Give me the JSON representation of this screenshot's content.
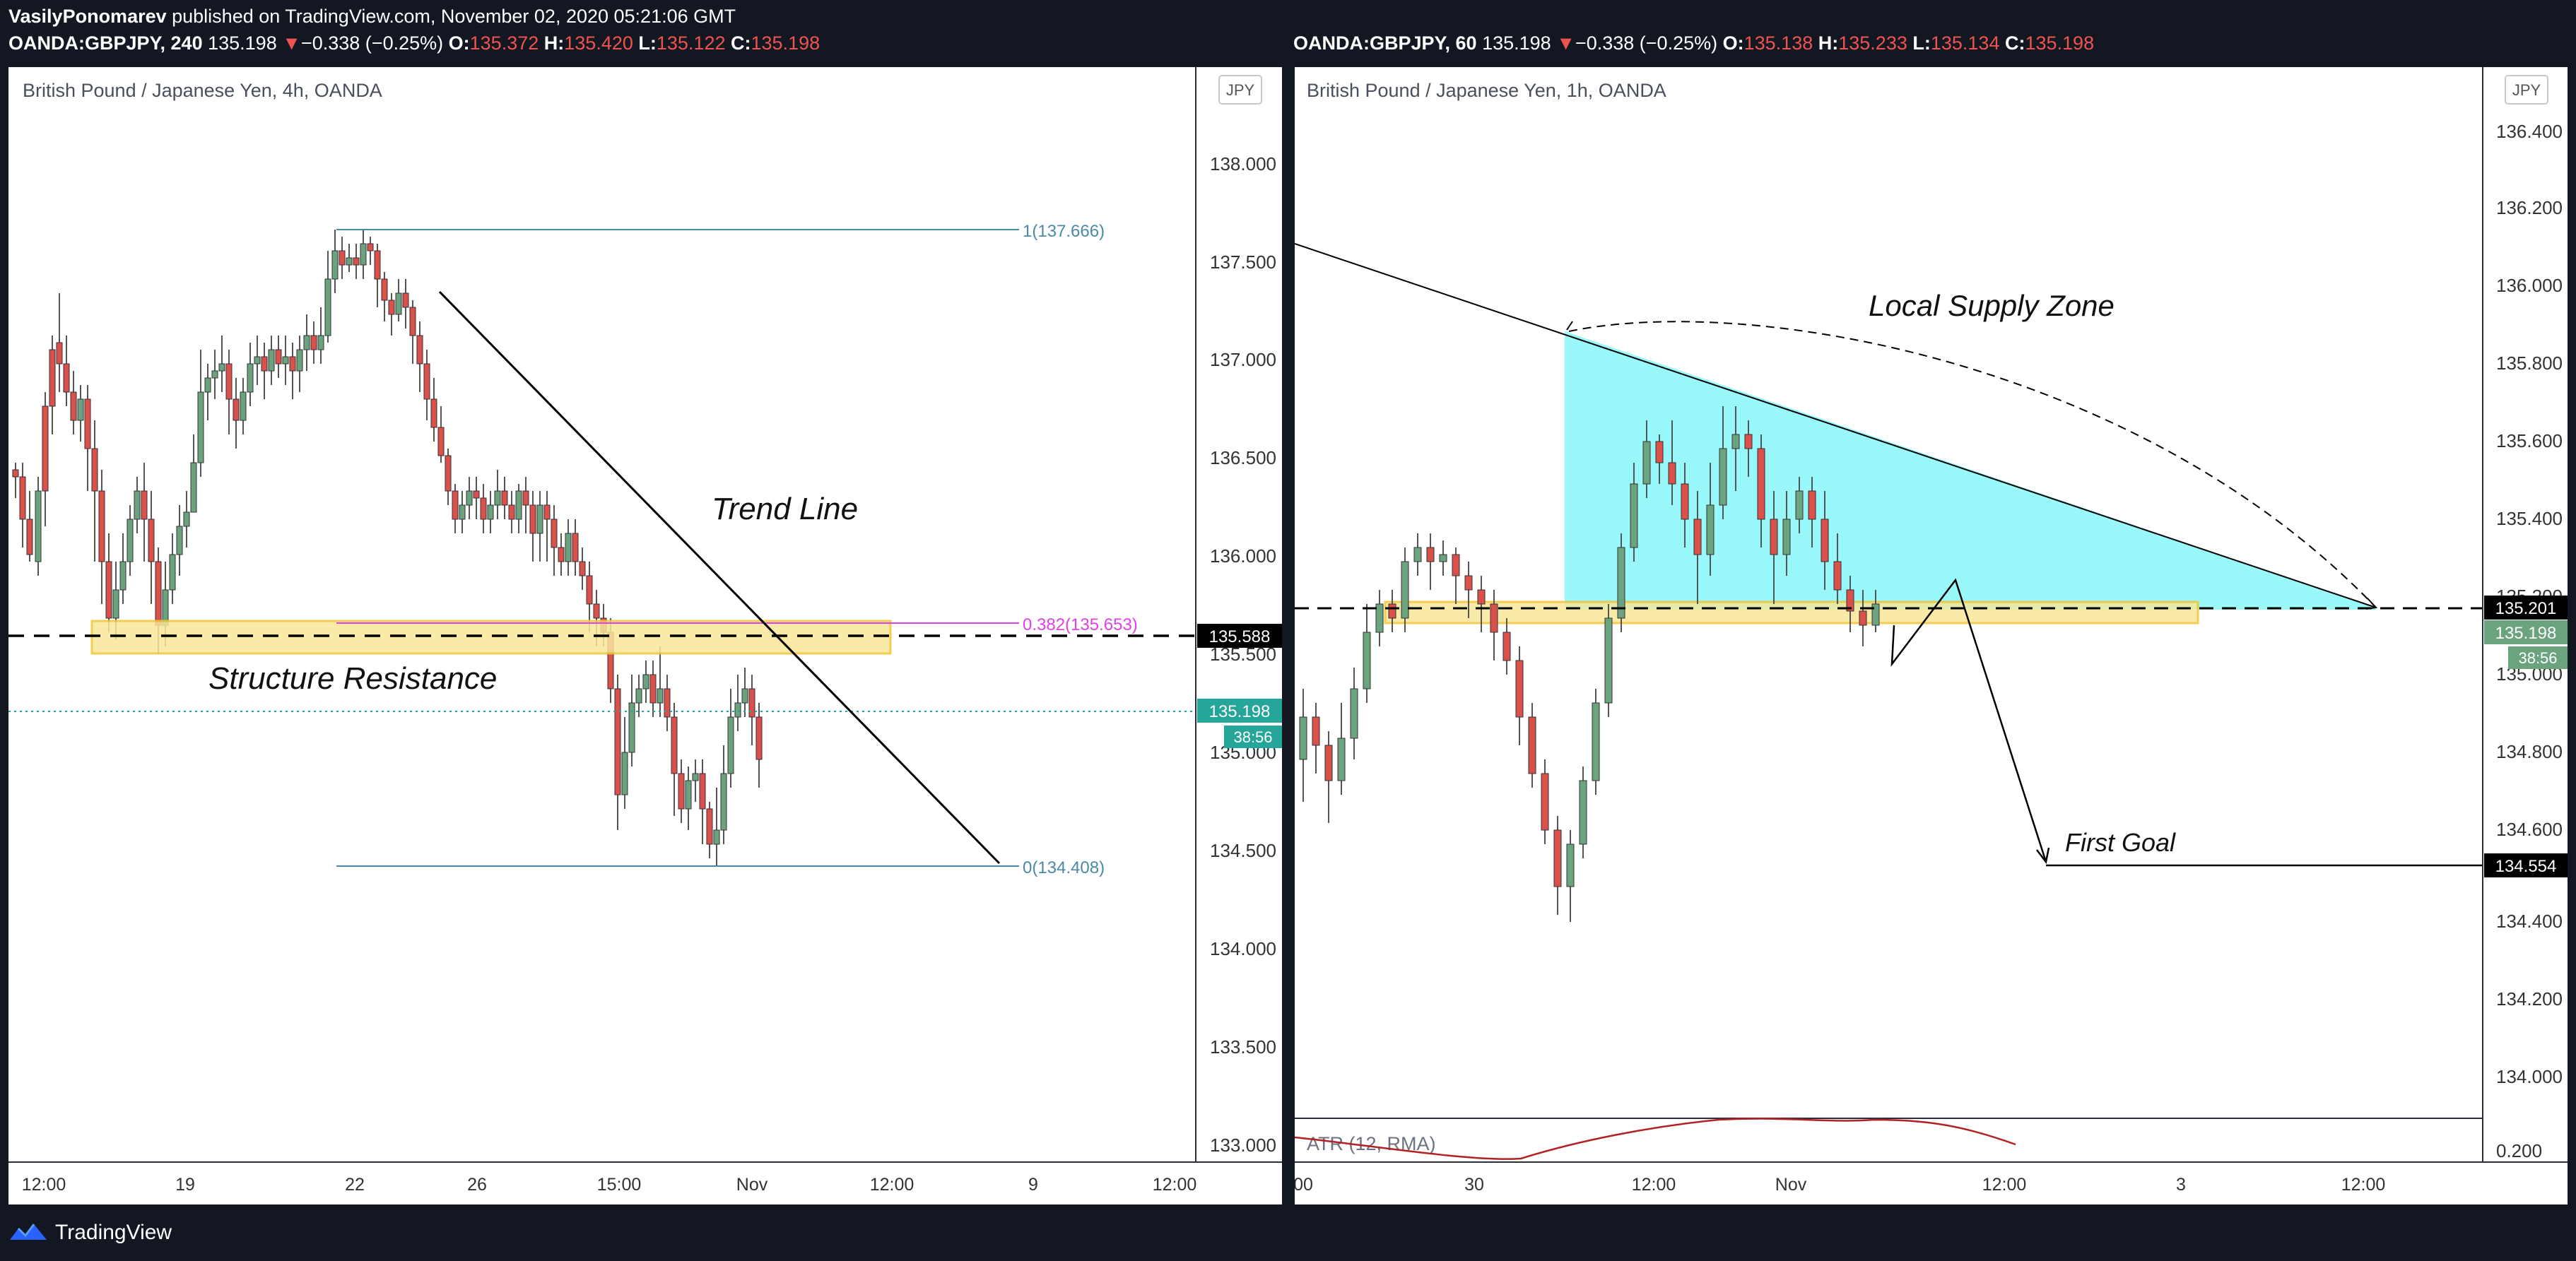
{
  "header": {
    "author": "VasilyPonomarev",
    "published": " published on TradingView.com, November 02, 2020 05:21:06 GMT",
    "left": {
      "symbol": "OANDA:GBPJPY, 240",
      "price": "135.198",
      "arrow": "▼",
      "change": "−0.338 (−0.25%)",
      "o_label": "O:",
      "o": "135.372",
      "h_label": "H:",
      "h": "135.420",
      "l_label": "L:",
      "l": "135.122",
      "c_label": "C:",
      "c": "135.198"
    },
    "right": {
      "symbol": "OANDA:GBPJPY, 60",
      "price": "135.198",
      "arrow": "▼",
      "change": "−0.338 (−0.25%)",
      "o_label": "O:",
      "o": "135.138",
      "h_label": "H:",
      "h": "135.233",
      "l_label": "L:",
      "l": "135.134",
      "c_label": "C:",
      "c": "135.198"
    }
  },
  "charts": [
    {
      "title": "British Pound / Japanese Yen, 4h, OANDA",
      "currency": "JPY",
      "yTicks": [
        "138.000",
        "137.500",
        "137.000",
        "136.500",
        "136.000",
        "135.500",
        "135.000",
        "134.500",
        "134.000",
        "133.500",
        "133.000"
      ],
      "xTicks": [
        "12:00",
        "19",
        "22",
        "26",
        "15:00",
        "Nov",
        "12:00",
        "9",
        "12:00"
      ],
      "priceTags": [
        {
          "text": "135.588",
          "kind": "level"
        },
        {
          "text": "135.198",
          "kind": "last"
        },
        {
          "text": "38:56",
          "kind": "timer"
        }
      ],
      "fib": [
        {
          "text": "1(137.666)",
          "kind": "top"
        },
        {
          "text": "0.382(135.653)",
          "kind": "mid"
        },
        {
          "text": "0(134.408)",
          "kind": "bottom"
        }
      ],
      "annotations": [
        "Trend Line",
        "Structure Resistance"
      ]
    },
    {
      "title": "British Pound / Japanese Yen, 1h, OANDA",
      "currency": "JPY",
      "yTicks": [
        "136.400",
        "136.200",
        "136.000",
        "135.800",
        "135.600",
        "135.400",
        "135.200",
        "135.000",
        "134.800",
        "134.600",
        "134.400",
        "134.200",
        "134.000"
      ],
      "xTicks": [
        "00",
        "30",
        "12:00",
        "Nov",
        "12:00",
        "3",
        "12:00"
      ],
      "priceTags": [
        {
          "text": "135.201",
          "kind": "level"
        },
        {
          "text": "135.198",
          "kind": "last"
        },
        {
          "text": "38:56",
          "kind": "timer"
        },
        {
          "text": "134.554",
          "kind": "level"
        }
      ],
      "annotations": [
        "Local Supply Zone",
        "First Goal"
      ],
      "indicator": {
        "label": "ATR (12, RMA)",
        "value": "0.200"
      }
    }
  ],
  "branding": {
    "name": "TradingView"
  },
  "colors": {
    "up": "#6aa37e",
    "down": "#d9514a",
    "supply": "#7ff6f7",
    "zone": "#f8e79a",
    "last": "#26a69a",
    "fib": "#4a8aa8",
    "fibMid": "#e040e8"
  }
}
